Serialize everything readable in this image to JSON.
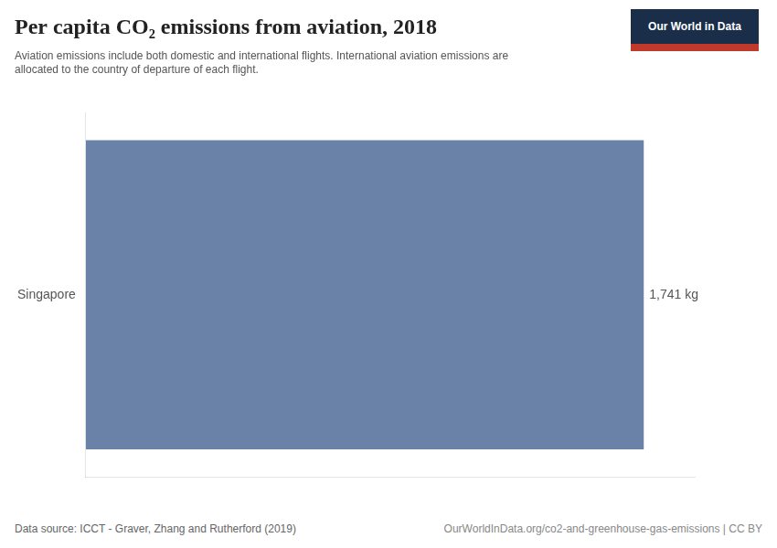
{
  "chart_data": {
    "type": "bar",
    "orientation": "horizontal",
    "title": "Per capita CO₂ emissions from aviation, 2018",
    "subtitle": "Aviation emissions include both domestic and international flights. International aviation emissions are\nallocated to the country of departure of each flight.",
    "categories": [
      "Singapore"
    ],
    "values": [
      1741
    ],
    "value_labels": [
      "1,741 kg"
    ],
    "data_labels": true,
    "color": "#6b82a8",
    "xlim": [
      0,
      1900
    ],
    "tick_labels": "y",
    "grid": false,
    "annotations": [
      "Data source: ICCT - Graver, Zhang and Rutherford (2019)",
      "OurWorldInData.org/co2-and-greenhouse-gas-emissions | CC BY",
      "Our World in Data"
    ]
  }
}
